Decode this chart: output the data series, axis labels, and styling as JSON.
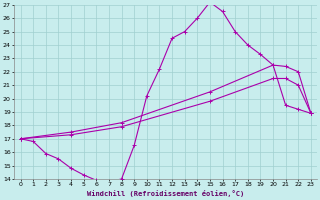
{
  "xlabel": "Windchill (Refroidissement éolien,°C)",
  "xlim": [
    -0.5,
    23.5
  ],
  "ylim": [
    14,
    27
  ],
  "xticks": [
    0,
    1,
    2,
    3,
    4,
    5,
    6,
    7,
    8,
    9,
    10,
    11,
    12,
    13,
    14,
    15,
    16,
    17,
    18,
    19,
    20,
    21,
    22,
    23
  ],
  "yticks": [
    14,
    15,
    16,
    17,
    18,
    19,
    20,
    21,
    22,
    23,
    24,
    25,
    26,
    27
  ],
  "bg_color": "#c8eded",
  "grid_color": "#a0d0d0",
  "line_color": "#aa00aa",
  "lines": [
    {
      "x": [
        0,
        1,
        2,
        3,
        4,
        5,
        6,
        7,
        8,
        9,
        10,
        11,
        12,
        13,
        14,
        15,
        16,
        17,
        18,
        19,
        20,
        21,
        22,
        23
      ],
      "y": [
        17.0,
        16.8,
        15.9,
        15.5,
        14.8,
        14.3,
        13.9,
        13.8,
        14.0,
        16.5,
        20.2,
        22.2,
        24.5,
        25.0,
        26.0,
        27.2,
        26.5,
        25.0,
        24.0,
        23.3,
        22.5,
        19.5,
        19.2,
        18.9
      ]
    },
    {
      "x": [
        0,
        4,
        8,
        15,
        20,
        21,
        22,
        23
      ],
      "y": [
        17.0,
        17.5,
        18.2,
        20.5,
        22.5,
        22.4,
        22.0,
        18.9
      ]
    },
    {
      "x": [
        0,
        4,
        8,
        15,
        20,
        21,
        22,
        23
      ],
      "y": [
        17.0,
        17.3,
        17.9,
        19.8,
        21.5,
        21.5,
        21.0,
        18.9
      ]
    }
  ]
}
